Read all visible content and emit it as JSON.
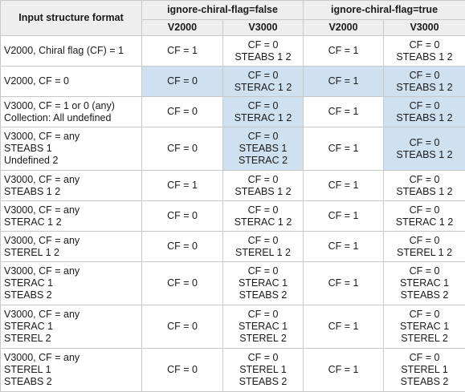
{
  "table": {
    "corner_header": "Input structure format",
    "groups": [
      {
        "label": "ignore-chiral-flag=false",
        "cols": [
          "V2000",
          "V3000"
        ]
      },
      {
        "label": "ignore-chiral-flag=true",
        "cols": [
          "V2000",
          "V3000"
        ]
      }
    ],
    "highlight_color": "#cfe0f1",
    "rows": [
      {
        "format": [
          "V2000, Chiral flag (CF) = 1"
        ],
        "cells": [
          {
            "lines": [
              "CF = 1"
            ],
            "hl": false
          },
          {
            "lines": [
              "CF = 0",
              "STEABS 1 2"
            ],
            "hl": false
          },
          {
            "lines": [
              "CF = 1"
            ],
            "hl": false
          },
          {
            "lines": [
              "CF = 0",
              "STEABS 1 2"
            ],
            "hl": false
          }
        ]
      },
      {
        "format": [
          "V2000, CF = 0"
        ],
        "cells": [
          {
            "lines": [
              "CF = 0"
            ],
            "hl": true
          },
          {
            "lines": [
              "CF = 0",
              "STERAC 1 2"
            ],
            "hl": true
          },
          {
            "lines": [
              "CF = 1"
            ],
            "hl": true
          },
          {
            "lines": [
              "CF = 0",
              "STEABS 1 2"
            ],
            "hl": true
          }
        ]
      },
      {
        "format": [
          "V3000, CF = 1 or 0 (any)",
          "Collection: All undefined"
        ],
        "cells": [
          {
            "lines": [
              "CF = 0"
            ],
            "hl": false
          },
          {
            "lines": [
              "CF = 0",
              "STERAC 1 2"
            ],
            "hl": true
          },
          {
            "lines": [
              "CF = 1"
            ],
            "hl": false
          },
          {
            "lines": [
              "CF = 0",
              "STEABS 1 2"
            ],
            "hl": true
          }
        ]
      },
      {
        "format": [
          "V3000, CF = any",
          "STEABS 1",
          "Undefined 2"
        ],
        "cells": [
          {
            "lines": [
              "CF = 0"
            ],
            "hl": false
          },
          {
            "lines": [
              "CF = 0",
              "STEABS 1",
              "STERAC 2"
            ],
            "hl": true
          },
          {
            "lines": [
              "CF = 1"
            ],
            "hl": false
          },
          {
            "lines": [
              "CF = 0",
              "STEABS 1 2"
            ],
            "hl": true
          }
        ]
      },
      {
        "format": [
          "V3000, CF = any",
          "STEABS 1 2"
        ],
        "cells": [
          {
            "lines": [
              "CF = 1"
            ],
            "hl": false
          },
          {
            "lines": [
              "CF = 0",
              "STEABS 1 2"
            ],
            "hl": false
          },
          {
            "lines": [
              "CF = 1"
            ],
            "hl": false
          },
          {
            "lines": [
              "CF = 0",
              "STEABS 1 2"
            ],
            "hl": false
          }
        ]
      },
      {
        "format": [
          "V3000, CF = any",
          "STERAC 1 2"
        ],
        "cells": [
          {
            "lines": [
              "CF = 0"
            ],
            "hl": false
          },
          {
            "lines": [
              "CF = 0",
              "STERAC 1 2"
            ],
            "hl": false
          },
          {
            "lines": [
              "CF = 1"
            ],
            "hl": false
          },
          {
            "lines": [
              "CF = 0",
              "STERAC 1 2"
            ],
            "hl": false
          }
        ]
      },
      {
        "format": [
          "V3000, CF = any",
          "STEREL 1 2"
        ],
        "cells": [
          {
            "lines": [
              "CF = 0"
            ],
            "hl": false
          },
          {
            "lines": [
              "CF = 0",
              "STEREL 1 2"
            ],
            "hl": false
          },
          {
            "lines": [
              "CF = 1"
            ],
            "hl": false
          },
          {
            "lines": [
              "CF = 0",
              "STEREL 1 2"
            ],
            "hl": false
          }
        ]
      },
      {
        "format": [
          "V3000, CF = any",
          "STERAC 1",
          "STEABS 2"
        ],
        "cells": [
          {
            "lines": [
              "CF = 0"
            ],
            "hl": false
          },
          {
            "lines": [
              "CF = 0",
              "STERAC 1",
              "STEABS 2"
            ],
            "hl": false
          },
          {
            "lines": [
              "CF = 1"
            ],
            "hl": false
          },
          {
            "lines": [
              "CF = 0",
              "STERAC 1",
              "STEABS 2"
            ],
            "hl": false
          }
        ]
      },
      {
        "format": [
          "V3000, CF = any",
          "STERAC 1",
          "STEREL 2"
        ],
        "cells": [
          {
            "lines": [
              "CF = 0"
            ],
            "hl": false
          },
          {
            "lines": [
              "CF = 0",
              "STERAC 1",
              "STEREL 2"
            ],
            "hl": false
          },
          {
            "lines": [
              "CF = 1"
            ],
            "hl": false
          },
          {
            "lines": [
              "CF = 0",
              "STERAC 1",
              "STEREL 2"
            ],
            "hl": false
          }
        ]
      },
      {
        "format": [
          "V3000, CF = any",
          "STEREL 1",
          "STEABS 2"
        ],
        "cells": [
          {
            "lines": [
              "CF = 0"
            ],
            "hl": false
          },
          {
            "lines": [
              "CF = 0",
              "STEREL 1",
              "STEABS 2"
            ],
            "hl": false
          },
          {
            "lines": [
              "CF = 1"
            ],
            "hl": false
          },
          {
            "lines": [
              "CF = 0",
              "STEREL 1",
              "STEABS 2"
            ],
            "hl": false
          }
        ]
      }
    ]
  }
}
